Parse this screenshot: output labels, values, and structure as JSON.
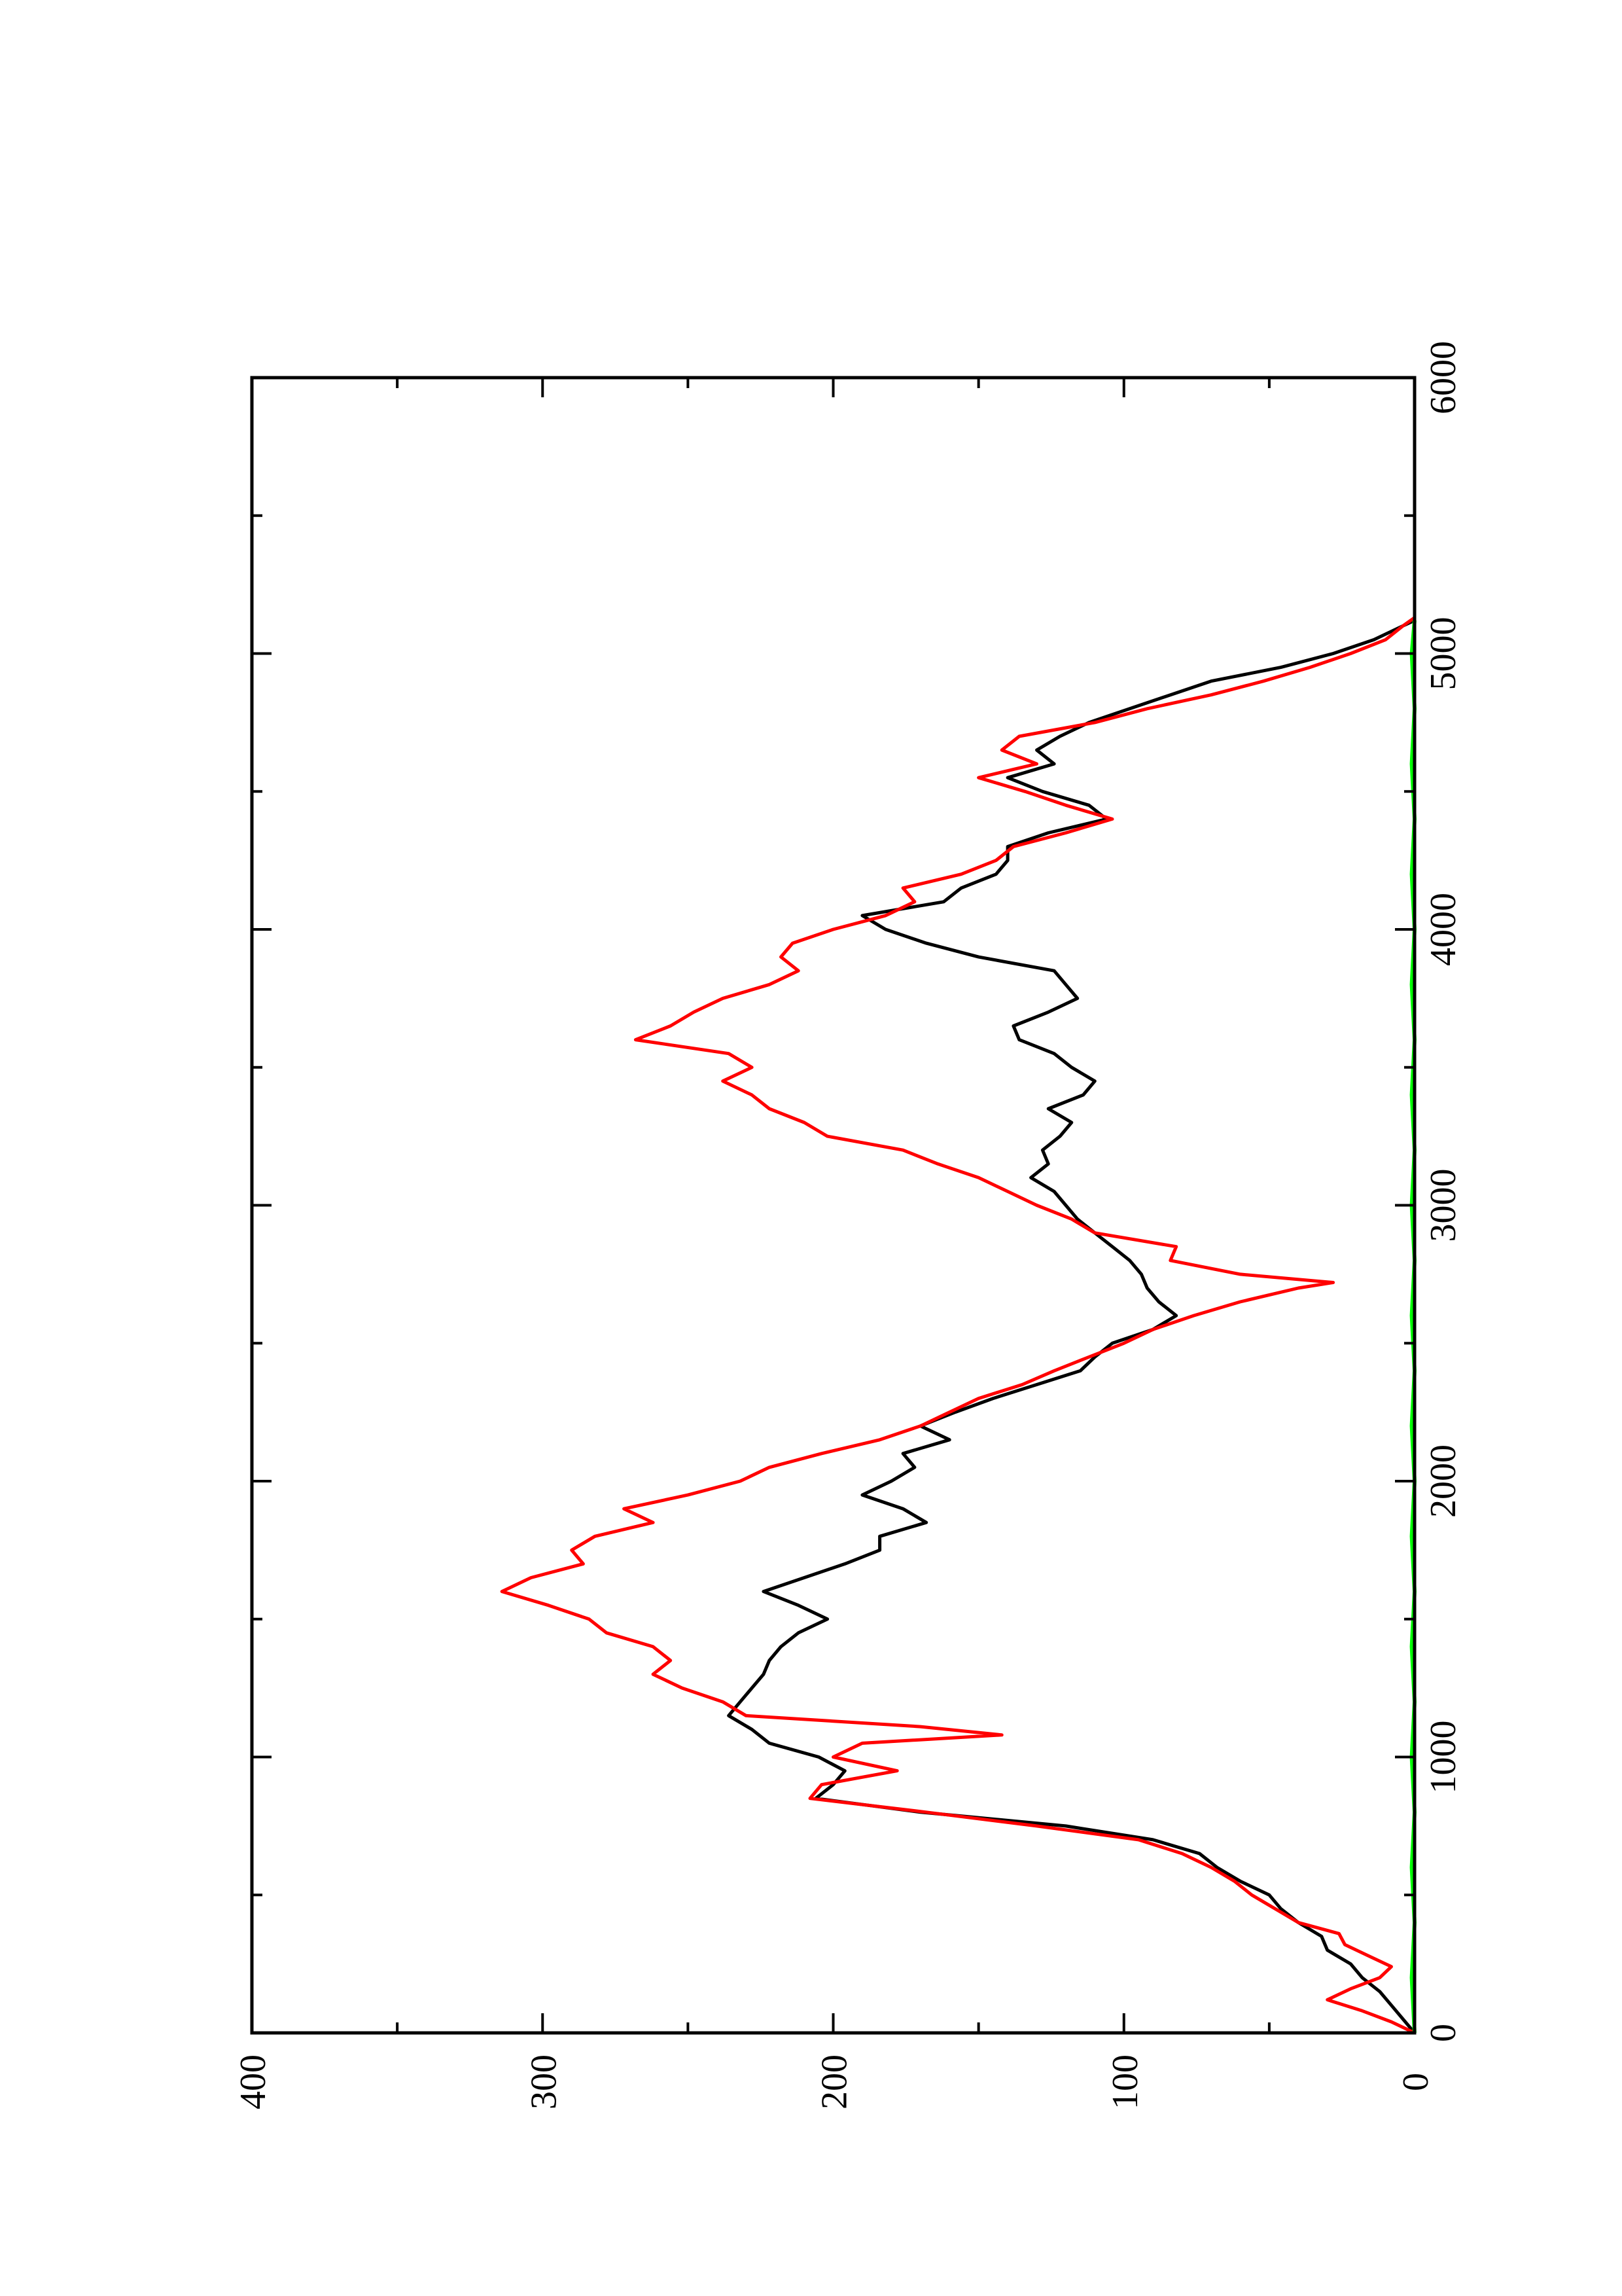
{
  "chart_data": {
    "type": "line",
    "orientation": "rotated-90-ccw",
    "title": "",
    "xlabel": "",
    "ylabel": "",
    "xlim": [
      0,
      6000
    ],
    "ylim": [
      0,
      400
    ],
    "x_ticks": [
      0,
      1000,
      2000,
      3000,
      4000,
      5000,
      6000
    ],
    "y_ticks": [
      0,
      100,
      200,
      300,
      400
    ],
    "x_tick_labels": [
      "0",
      "1000",
      "2000",
      "3000",
      "4000",
      "5000",
      "6000"
    ],
    "y_tick_labels": [
      "0",
      "100",
      "200",
      "300",
      "400"
    ],
    "grid": false,
    "legend": "none",
    "series": [
      {
        "color": "#000000",
        "points": [
          [
            0,
            0
          ],
          [
            50,
            4
          ],
          [
            100,
            8
          ],
          [
            150,
            12
          ],
          [
            200,
            18
          ],
          [
            250,
            22
          ],
          [
            300,
            30
          ],
          [
            350,
            32
          ],
          [
            400,
            40
          ],
          [
            450,
            46
          ],
          [
            500,
            50
          ],
          [
            550,
            60
          ],
          [
            600,
            68
          ],
          [
            650,
            74
          ],
          [
            700,
            90
          ],
          [
            750,
            120
          ],
          [
            800,
            170
          ],
          [
            850,
            206
          ],
          [
            900,
            200
          ],
          [
            950,
            196
          ],
          [
            1000,
            205
          ],
          [
            1050,
            222
          ],
          [
            1100,
            228
          ],
          [
            1150,
            236
          ],
          [
            1200,
            232
          ],
          [
            1250,
            228
          ],
          [
            1300,
            224
          ],
          [
            1350,
            222
          ],
          [
            1400,
            218
          ],
          [
            1450,
            212
          ],
          [
            1500,
            202
          ],
          [
            1550,
            212
          ],
          [
            1600,
            224
          ],
          [
            1650,
            210
          ],
          [
            1700,
            196
          ],
          [
            1750,
            184
          ],
          [
            1800,
            184
          ],
          [
            1850,
            168
          ],
          [
            1900,
            176
          ],
          [
            1950,
            190
          ],
          [
            2000,
            180
          ],
          [
            2050,
            172
          ],
          [
            2100,
            176
          ],
          [
            2150,
            160
          ],
          [
            2200,
            170
          ],
          [
            2250,
            158
          ],
          [
            2300,
            145
          ],
          [
            2350,
            130
          ],
          [
            2400,
            115
          ],
          [
            2450,
            110
          ],
          [
            2500,
            104
          ],
          [
            2550,
            90
          ],
          [
            2600,
            82
          ],
          [
            2650,
            88
          ],
          [
            2700,
            92
          ],
          [
            2750,
            94
          ],
          [
            2800,
            98
          ],
          [
            2850,
            104
          ],
          [
            2900,
            110
          ],
          [
            2950,
            116
          ],
          [
            3000,
            120
          ],
          [
            3050,
            124
          ],
          [
            3100,
            132
          ],
          [
            3150,
            126
          ],
          [
            3200,
            128
          ],
          [
            3250,
            122
          ],
          [
            3300,
            118
          ],
          [
            3350,
            126
          ],
          [
            3400,
            114
          ],
          [
            3450,
            110
          ],
          [
            3500,
            118
          ],
          [
            3550,
            124
          ],
          [
            3600,
            136
          ],
          [
            3650,
            138
          ],
          [
            3700,
            126
          ],
          [
            3750,
            116
          ],
          [
            3800,
            120
          ],
          [
            3850,
            124
          ],
          [
            3900,
            150
          ],
          [
            3950,
            168
          ],
          [
            4000,
            182
          ],
          [
            4050,
            190
          ],
          [
            4100,
            162
          ],
          [
            4150,
            156
          ],
          [
            4200,
            144
          ],
          [
            4250,
            140
          ],
          [
            4300,
            140
          ],
          [
            4350,
            126
          ],
          [
            4400,
            106
          ],
          [
            4450,
            112
          ],
          [
            4500,
            128
          ],
          [
            4550,
            140
          ],
          [
            4600,
            124
          ],
          [
            4650,
            130
          ],
          [
            4700,
            122
          ],
          [
            4750,
            112
          ],
          [
            4800,
            98
          ],
          [
            4850,
            84
          ],
          [
            4900,
            70
          ],
          [
            4950,
            46
          ],
          [
            5000,
            28
          ],
          [
            5050,
            14
          ],
          [
            5100,
            4
          ],
          [
            5120,
            0
          ]
        ]
      },
      {
        "color": "#ff0000",
        "points": [
          [
            0,
            0
          ],
          [
            40,
            8
          ],
          [
            80,
            18
          ],
          [
            120,
            30
          ],
          [
            160,
            22
          ],
          [
            200,
            12
          ],
          [
            240,
            8
          ],
          [
            280,
            16
          ],
          [
            320,
            24
          ],
          [
            360,
            26
          ],
          [
            400,
            40
          ],
          [
            450,
            48
          ],
          [
            500,
            56
          ],
          [
            550,
            62
          ],
          [
            600,
            70
          ],
          [
            650,
            80
          ],
          [
            700,
            95
          ],
          [
            750,
            130
          ],
          [
            800,
            168
          ],
          [
            850,
            208
          ],
          [
            900,
            204
          ],
          [
            950,
            178
          ],
          [
            1000,
            200
          ],
          [
            1050,
            190
          ],
          [
            1080,
            142
          ],
          [
            1110,
            170
          ],
          [
            1150,
            230
          ],
          [
            1200,
            238
          ],
          [
            1250,
            252
          ],
          [
            1300,
            262
          ],
          [
            1350,
            256
          ],
          [
            1400,
            262
          ],
          [
            1450,
            278
          ],
          [
            1500,
            284
          ],
          [
            1550,
            298
          ],
          [
            1600,
            314
          ],
          [
            1650,
            304
          ],
          [
            1700,
            286
          ],
          [
            1750,
            290
          ],
          [
            1800,
            282
          ],
          [
            1850,
            262
          ],
          [
            1900,
            272
          ],
          [
            1950,
            250
          ],
          [
            2000,
            232
          ],
          [
            2050,
            222
          ],
          [
            2100,
            204
          ],
          [
            2150,
            184
          ],
          [
            2200,
            170
          ],
          [
            2250,
            160
          ],
          [
            2300,
            150
          ],
          [
            2350,
            135
          ],
          [
            2400,
            124
          ],
          [
            2450,
            112
          ],
          [
            2500,
            100
          ],
          [
            2550,
            90
          ],
          [
            2600,
            76
          ],
          [
            2650,
            60
          ],
          [
            2700,
            40
          ],
          [
            2720,
            28
          ],
          [
            2750,
            60
          ],
          [
            2800,
            84
          ],
          [
            2850,
            82
          ],
          [
            2900,
            110
          ],
          [
            2950,
            118
          ],
          [
            3000,
            130
          ],
          [
            3050,
            140
          ],
          [
            3100,
            150
          ],
          [
            3150,
            164
          ],
          [
            3200,
            176
          ],
          [
            3250,
            202
          ],
          [
            3300,
            210
          ],
          [
            3350,
            222
          ],
          [
            3400,
            228
          ],
          [
            3450,
            238
          ],
          [
            3500,
            228
          ],
          [
            3550,
            236
          ],
          [
            3600,
            268
          ],
          [
            3650,
            256
          ],
          [
            3700,
            248
          ],
          [
            3750,
            238
          ],
          [
            3800,
            222
          ],
          [
            3850,
            212
          ],
          [
            3900,
            218
          ],
          [
            3950,
            214
          ],
          [
            4000,
            200
          ],
          [
            4050,
            182
          ],
          [
            4100,
            172
          ],
          [
            4150,
            176
          ],
          [
            4200,
            156
          ],
          [
            4250,
            144
          ],
          [
            4300,
            138
          ],
          [
            4350,
            120
          ],
          [
            4400,
            104
          ],
          [
            4450,
            120
          ],
          [
            4500,
            134
          ],
          [
            4550,
            150
          ],
          [
            4600,
            130
          ],
          [
            4650,
            142
          ],
          [
            4700,
            136
          ],
          [
            4750,
            110
          ],
          [
            4800,
            92
          ],
          [
            4850,
            70
          ],
          [
            4900,
            52
          ],
          [
            4950,
            36
          ],
          [
            5000,
            22
          ],
          [
            5050,
            10
          ],
          [
            5100,
            4
          ],
          [
            5130,
            0
          ]
        ]
      },
      {
        "color": "#00ff00",
        "points": [
          [
            0,
            0
          ],
          [
            200,
            1
          ],
          [
            400,
            0
          ],
          [
            600,
            1
          ],
          [
            800,
            0
          ],
          [
            1000,
            1
          ],
          [
            1200,
            0
          ],
          [
            1400,
            1
          ],
          [
            1600,
            0
          ],
          [
            1800,
            1
          ],
          [
            2000,
            0
          ],
          [
            2200,
            1
          ],
          [
            2400,
            0
          ],
          [
            2600,
            1
          ],
          [
            2800,
            0
          ],
          [
            3000,
            1
          ],
          [
            3200,
            0
          ],
          [
            3400,
            1
          ],
          [
            3600,
            0
          ],
          [
            3800,
            1
          ],
          [
            4000,
            0
          ],
          [
            4200,
            1
          ],
          [
            4400,
            0
          ],
          [
            4600,
            1
          ],
          [
            4800,
            0
          ],
          [
            5000,
            1
          ],
          [
            5120,
            0
          ]
        ]
      }
    ]
  }
}
